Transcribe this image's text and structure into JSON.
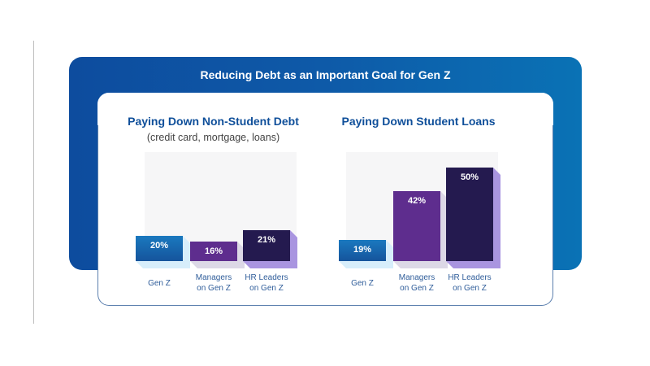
{
  "title": "Reducing Debt as an Important Goal for Gen Z",
  "colors": {
    "frame": "#0d4fa0",
    "gen_z": "#1a6cb3",
    "managers": "#5e2d8e",
    "hr_leaders": "#241a4f"
  },
  "chart_data": [
    {
      "type": "bar",
      "title": "Paying Down Non-Student Debt",
      "subtitle": "(credit card, mortgage, loans)",
      "categories": [
        "Gen Z",
        "Managers\non Gen Z",
        "HR Leaders\non Gen Z"
      ],
      "values": [
        20,
        16,
        21
      ],
      "data_labels": [
        "20%",
        "16%",
        "21%"
      ],
      "unit": "%"
    },
    {
      "type": "bar",
      "title": "Paying Down Student Loans",
      "subtitle": "",
      "categories": [
        "Gen Z",
        "Managers\non Gen Z",
        "HR Leaders\non Gen Z"
      ],
      "values": [
        19,
        42,
        50
      ],
      "data_labels": [
        "19%",
        "42%",
        "50%"
      ],
      "unit": "%"
    }
  ]
}
